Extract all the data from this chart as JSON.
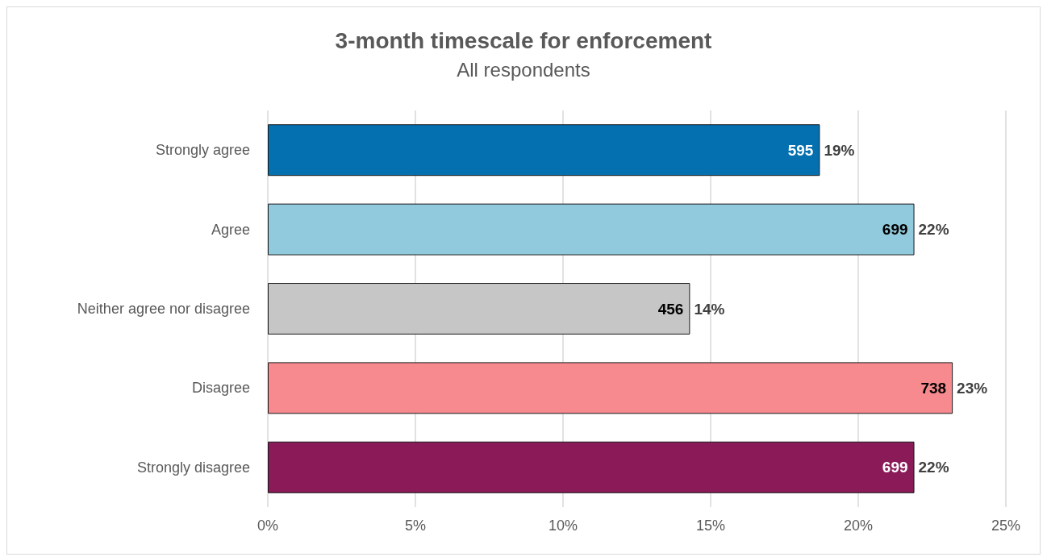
{
  "chart_data": {
    "type": "bar",
    "orientation": "horizontal",
    "title": "3-month timescale for enforcement",
    "subtitle": "All respondents",
    "categories": [
      "Strongly agree",
      "Agree",
      "Neither agree nor disagree",
      "Disagree",
      "Strongly disagree"
    ],
    "values": [
      18.7,
      21.9,
      14.3,
      23.2,
      21.9
    ],
    "colors": [
      "#0570b0",
      "#92cadd",
      "#c6c6c6",
      "#f78a8f",
      "#8a1a58"
    ],
    "value_labels": [
      "19%",
      "22%",
      "14%",
      "23%",
      "22%"
    ],
    "annotations": [
      {
        "text": "595",
        "x": 18.7,
        "y": "Strongly agree"
      },
      {
        "text": "699",
        "x": 21.9,
        "y": "Agree"
      },
      {
        "text": "456",
        "x": 14.3,
        "y": "Neither agree nor disagree"
      },
      {
        "text": "738",
        "x": 23.2,
        "y": "Disagree"
      },
      {
        "text": "699",
        "x": 21.9,
        "y": "Strongly disagree"
      }
    ],
    "xlim": [
      0,
      25
    ],
    "xticks": [
      {
        "value": 0,
        "label": "0%"
      },
      {
        "value": 5,
        "label": "5%"
      },
      {
        "value": 10,
        "label": "10%"
      },
      {
        "value": 15,
        "label": "15%"
      },
      {
        "value": 20,
        "label": "20%"
      },
      {
        "value": 25,
        "label": "25%"
      }
    ],
    "grid": "x"
  }
}
